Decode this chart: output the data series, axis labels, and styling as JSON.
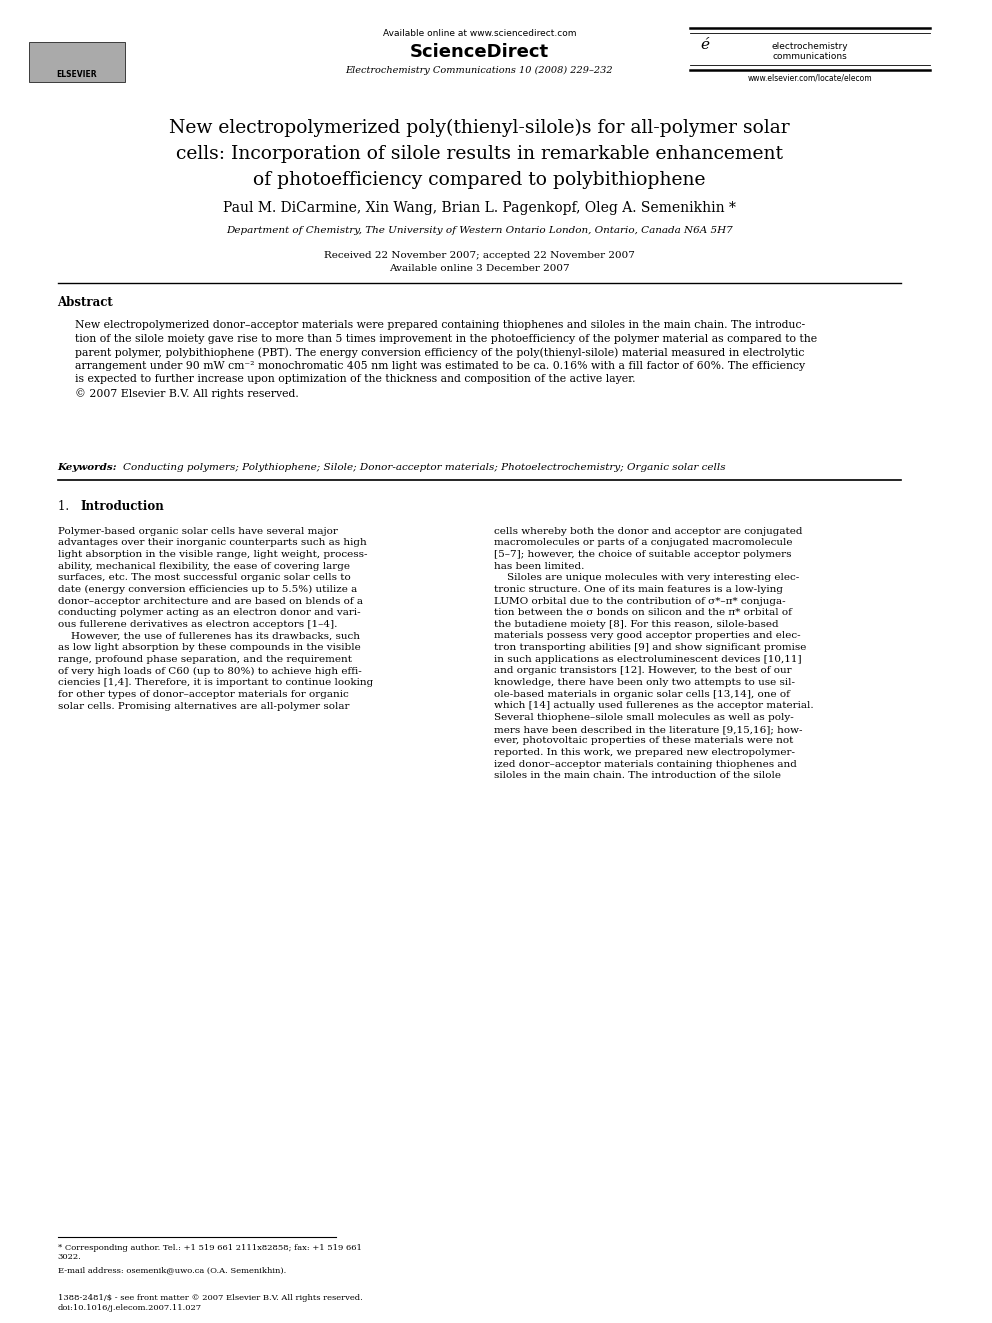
{
  "bg_color": "#ffffff",
  "page_width": 9.92,
  "page_height": 13.23,
  "header": {
    "available_online": "Available online at www.sciencedirect.com",
    "sciencedirect": "ScienceDirect",
    "journal": "Electrochemistry Communications 10 (2008) 229–232",
    "journal_name_line1": "electrochemistry",
    "journal_name_line2": "communications",
    "website": "www.elsevier.com/locate/elecom"
  },
  "title": "New electropolymerized poly(thienyl-silole)s for all-polymer solar\ncells: Incorporation of silole results in remarkable enhancement\nof photoefficiency compared to polybithiophene",
  "authors": "Paul M. DiCarmine, Xin Wang, Brian L. Pagenkopf, Oleg A. Semenikhin *",
  "affiliation": "Department of Chemistry, The University of Western Ontario London, Ontario, Canada N6A 5H7",
  "dates": "Received 22 November 2007; accepted 22 November 2007\nAvailable online 3 December 2007",
  "abstract_title": "Abstract",
  "abstract_text": "New electropolymerized donor–acceptor materials were prepared containing thiophenes and siloles in the main chain. The introduc-\ntion of the silole moiety gave rise to more than 5 times improvement in the photoefficiency of the polymer material as compared to the\nparent polymer, polybithiophene (PBT). The energy conversion efficiency of the poly(thienyl-silole) material measured in electrolytic\narrangement under 90 mW cm⁻² monochromatic 405 nm light was estimated to be ca. 0.16% with a fill factor of 60%. The efficiency\nis expected to further increase upon optimization of the thickness and composition of the active layer.\n© 2007 Elsevier B.V. All rights reserved.",
  "keywords_label": "Keywords:",
  "keywords": "Conducting polymers; Polythiophene; Silole; Donor-acceptor materials; Photoelectrochemistry; Organic solar cells",
  "section1_title_num": "1. ",
  "section1_title_word": "Introduction",
  "section1_left": "Polymer-based organic solar cells have several major\nadvantages over their inorganic counterparts such as high\nlight absorption in the visible range, light weight, process-\nability, mechanical flexibility, the ease of covering large\nsurfaces, etc. The most successful organic solar cells to\ndate (energy conversion efficiencies up to 5.5%) utilize a\ndonor–acceptor architecture and are based on blends of a\nconducting polymer acting as an electron donor and vari-\nous fullerene derivatives as electron acceptors [1–4].\n    However, the use of fullerenes has its drawbacks, such\nas low light absorption by these compounds in the visible\nrange, profound phase separation, and the requirement\nof very high loads of C60 (up to 80%) to achieve high effi-\nciencies [1,4]. Therefore, it is important to continue looking\nfor other types of donor–acceptor materials for organic\nsolar cells. Promising alternatives are all-polymer solar",
  "section1_right": "cells whereby both the donor and acceptor are conjugated\nmacromolecules or parts of a conjugated macromolecule\n[5–7]; however, the choice of suitable acceptor polymers\nhas been limited.\n    Siloles are unique molecules with very interesting elec-\ntronic structure. One of its main features is a low-lying\nLUMO orbital due to the contribution of σ*–π* conjuga-\ntion between the σ bonds on silicon and the π* orbital of\nthe butadiene moiety [8]. For this reason, silole-based\nmaterials possess very good acceptor properties and elec-\ntron transporting abilities [9] and show significant promise\nin such applications as electroluminescent devices [10,11]\nand organic transistors [12]. However, to the best of our\nknowledge, there have been only two attempts to use sil-\nole-based materials in organic solar cells [13,14], one of\nwhich [14] actually used fullerenes as the acceptor material.\nSeveral thiophene–silole small molecules as well as poly-\nmers have been described in the literature [9,15,16]; how-\never, photovoltaic properties of these materials were not\nreported. In this work, we prepared new electropolymer-\nized donor–acceptor materials containing thiophenes and\nsiloles in the main chain. The introduction of the silole",
  "footnote_star": "* Corresponding author. Tel.: +1 519 661 2111x82858; fax: +1 519 661\n3022.",
  "footnote_email": "E-mail address: osemenik@uwo.ca (O.A. Semenikhin).",
  "footer_left": "1388-2481/$ - see front matter © 2007 Elsevier B.V. All rights reserved.\ndoi:10.1016/j.elecom.2007.11.027"
}
